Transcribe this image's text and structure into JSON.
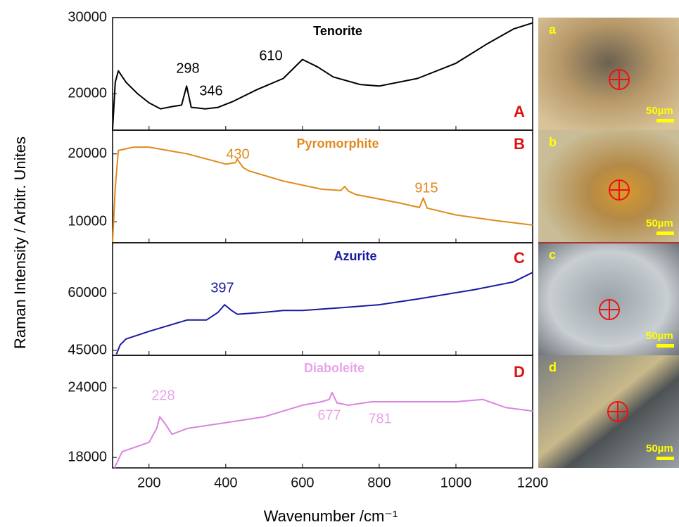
{
  "figure": {
    "xlabel": "Wavenumber /cm⁻¹",
    "ylabel": "Raman Intensity / Arbitr. Unites"
  },
  "chart_data": [
    {
      "type": "line",
      "title": "Tenorite",
      "panel": "A",
      "color": "#000000",
      "title_color": "#000000",
      "annotations": [
        "298",
        "346",
        "610"
      ],
      "x": [
        105,
        112,
        120,
        140,
        170,
        200,
        230,
        260,
        285,
        298,
        310,
        330,
        346,
        380,
        420,
        480,
        550,
        600,
        640,
        680,
        750,
        800,
        900,
        1000,
        1080,
        1150,
        1200
      ],
      "values": [
        15300,
        21500,
        23000,
        21500,
        20000,
        18800,
        18000,
        18300,
        18500,
        21000,
        18200,
        18100,
        18000,
        18200,
        19000,
        20500,
        22000,
        24500,
        23500,
        22200,
        21200,
        21000,
        22000,
        24000,
        26500,
        28500,
        29300
      ],
      "xlim": [
        105,
        1200
      ],
      "xticks": [
        200,
        400,
        600,
        800,
        1000,
        1200
      ],
      "ylim": [
        15200,
        30000
      ],
      "yticks": [
        20000,
        30000
      ]
    },
    {
      "type": "line",
      "title": "Pyromorphite",
      "panel": "B",
      "color": "#e08a1e",
      "title_color": "#e08a1e",
      "annotations": [
        "430",
        "915"
      ],
      "x": [
        105,
        112,
        120,
        160,
        200,
        300,
        400,
        425,
        430,
        445,
        460,
        550,
        650,
        700,
        710,
        720,
        740,
        850,
        905,
        915,
        925,
        1000,
        1100,
        1200
      ],
      "values": [
        7000,
        15000,
        20500,
        21000,
        21000,
        20000,
        18500,
        18700,
        19200,
        18000,
        17500,
        16000,
        14800,
        14600,
        15200,
        14500,
        14000,
        12800,
        12100,
        13500,
        12000,
        11000,
        10200,
        9500
      ],
      "xlim": [
        105,
        1200
      ],
      "xticks": [
        200,
        400,
        600,
        800,
        1000,
        1200
      ],
      "ylim": [
        6900,
        23500
      ],
      "yticks": [
        10000,
        20000
      ]
    },
    {
      "type": "line",
      "title": "Azurite",
      "panel": "C",
      "color": "#1a1aa0",
      "title_color": "#1a1aa0",
      "annotations": [
        "397"
      ],
      "x": [
        115,
        125,
        140,
        200,
        250,
        300,
        350,
        380,
        397,
        415,
        430,
        500,
        550,
        600,
        700,
        800,
        900,
        1050,
        1150,
        1200
      ],
      "values": [
        44000,
        46500,
        48000,
        50000,
        51500,
        53000,
        53000,
        55000,
        57000,
        55500,
        54500,
        55000,
        55500,
        55500,
        56200,
        57000,
        58500,
        61000,
        63000,
        65500
      ],
      "xlim": [
        105,
        1200
      ],
      "xticks": [
        200,
        400,
        600,
        800,
        1000,
        1200
      ],
      "ylim": [
        43700,
        73300
      ],
      "yticks": [
        45000,
        60000
      ]
    },
    {
      "type": "line",
      "title": "Diaboleite",
      "panel": "D",
      "color": "#d985e0",
      "title_color": "#eaa3ea",
      "annotations": [
        "228",
        "677",
        "781"
      ],
      "x": [
        110,
        130,
        200,
        220,
        228,
        240,
        260,
        300,
        400,
        500,
        600,
        650,
        670,
        677,
        690,
        720,
        781,
        900,
        1000,
        1070,
        1130,
        1200
      ],
      "values": [
        17100,
        18500,
        19300,
        20500,
        21500,
        21000,
        20000,
        20500,
        21000,
        21500,
        22500,
        22800,
        23000,
        23600,
        22700,
        22500,
        22800,
        22800,
        22800,
        23000,
        22300,
        22000
      ],
      "xlim": [
        105,
        1200
      ],
      "xticks": [
        200,
        400,
        600,
        800,
        1000,
        1200
      ],
      "ylim": [
        17100,
        26800
      ],
      "yticks": [
        18000,
        24000
      ]
    }
  ],
  "images": [
    {
      "label": "a",
      "scale": "50µm"
    },
    {
      "label": "b",
      "scale": "50µm"
    },
    {
      "label": "c",
      "scale": "50µm"
    },
    {
      "label": "d",
      "scale": "50µm"
    }
  ]
}
